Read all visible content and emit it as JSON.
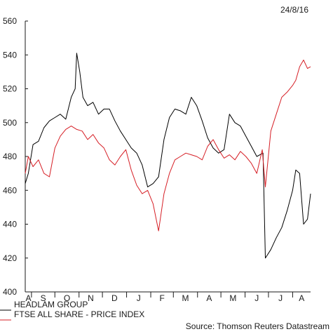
{
  "date_label": "24/8/16",
  "source": "Source: Thomson Reuters Datastream",
  "chart_data": {
    "type": "line",
    "title": "",
    "xlabel": "",
    "ylabel": "",
    "ylim": [
      400,
      560
    ],
    "yticks": [
      400,
      420,
      440,
      460,
      480,
      500,
      520,
      540,
      560
    ],
    "x_month_labels": [
      "A",
      "S",
      "O",
      "N",
      "D",
      "J",
      "F",
      "M",
      "A",
      "M",
      "J",
      "J",
      "A"
    ],
    "x_months": [
      "2015-08",
      "2015-09",
      "2015-10",
      "2015-11",
      "2015-12",
      "2016-01",
      "2016-02",
      "2016-03",
      "2016-04",
      "2016-05",
      "2016-06",
      "2016-07",
      "2016-08"
    ],
    "x_range": [
      "2015-08-24",
      "2016-08-24"
    ],
    "legend_position": "bottom-left",
    "grid": false,
    "series": [
      {
        "name": "HEADLAM GROUP",
        "color": "#000000",
        "points": [
          [
            "2015-08-24",
            464
          ],
          [
            "2015-08-28",
            470
          ],
          [
            "2015-09-03",
            487
          ],
          [
            "2015-09-10",
            489
          ],
          [
            "2015-09-17",
            497
          ],
          [
            "2015-09-24",
            501
          ],
          [
            "2015-10-01",
            503
          ],
          [
            "2015-10-08",
            505
          ],
          [
            "2015-10-15",
            502
          ],
          [
            "2015-10-22",
            515
          ],
          [
            "2015-10-27",
            520
          ],
          [
            "2015-10-29",
            541
          ],
          [
            "2015-11-02",
            530
          ],
          [
            "2015-11-06",
            515
          ],
          [
            "2015-11-12",
            510
          ],
          [
            "2015-11-19",
            512
          ],
          [
            "2015-11-26",
            505
          ],
          [
            "2015-12-03",
            508
          ],
          [
            "2015-12-10",
            508
          ],
          [
            "2015-12-17",
            501
          ],
          [
            "2015-12-24",
            495
          ],
          [
            "2015-12-31",
            490
          ],
          [
            "2016-01-07",
            485
          ],
          [
            "2016-01-14",
            482
          ],
          [
            "2016-01-21",
            475
          ],
          [
            "2016-01-28",
            462
          ],
          [
            "2016-02-04",
            464
          ],
          [
            "2016-02-11",
            468
          ],
          [
            "2016-02-18",
            490
          ],
          [
            "2016-02-25",
            503
          ],
          [
            "2016-03-03",
            508
          ],
          [
            "2016-03-10",
            507
          ],
          [
            "2016-03-17",
            505
          ],
          [
            "2016-03-24",
            515
          ],
          [
            "2016-03-31",
            510
          ],
          [
            "2016-04-07",
            501
          ],
          [
            "2016-04-14",
            491
          ],
          [
            "2016-04-21",
            485
          ],
          [
            "2016-04-28",
            482
          ],
          [
            "2016-05-05",
            484
          ],
          [
            "2016-05-12",
            505
          ],
          [
            "2016-05-19",
            500
          ],
          [
            "2016-05-26",
            498
          ],
          [
            "2016-06-02",
            492
          ],
          [
            "2016-06-09",
            486
          ],
          [
            "2016-06-16",
            480
          ],
          [
            "2016-06-24",
            482
          ],
          [
            "2016-06-27",
            420
          ],
          [
            "2016-07-04",
            425
          ],
          [
            "2016-07-11",
            432
          ],
          [
            "2016-07-18",
            438
          ],
          [
            "2016-07-25",
            448
          ],
          [
            "2016-08-01",
            460
          ],
          [
            "2016-08-05",
            472
          ],
          [
            "2016-08-10",
            470
          ],
          [
            "2016-08-15",
            440
          ],
          [
            "2016-08-20",
            443
          ],
          [
            "2016-08-24",
            458
          ]
        ]
      },
      {
        "name": "FTSE ALL SHARE - PRICE INDEX",
        "color": "#d61f26",
        "points": [
          [
            "2015-08-24",
            470
          ],
          [
            "2015-08-28",
            480
          ],
          [
            "2015-09-03",
            474
          ],
          [
            "2015-09-10",
            478
          ],
          [
            "2015-09-17",
            470
          ],
          [
            "2015-09-24",
            468
          ],
          [
            "2015-10-01",
            485
          ],
          [
            "2015-10-08",
            492
          ],
          [
            "2015-10-15",
            496
          ],
          [
            "2015-10-22",
            498
          ],
          [
            "2015-10-29",
            496
          ],
          [
            "2015-11-05",
            495
          ],
          [
            "2015-11-12",
            490
          ],
          [
            "2015-11-19",
            493
          ],
          [
            "2015-11-26",
            488
          ],
          [
            "2015-12-03",
            485
          ],
          [
            "2015-12-10",
            478
          ],
          [
            "2015-12-17",
            475
          ],
          [
            "2015-12-24",
            480
          ],
          [
            "2015-12-31",
            484
          ],
          [
            "2016-01-07",
            472
          ],
          [
            "2016-01-14",
            463
          ],
          [
            "2016-01-21",
            458
          ],
          [
            "2016-01-28",
            460
          ],
          [
            "2016-02-04",
            452
          ],
          [
            "2016-02-11",
            436
          ],
          [
            "2016-02-18",
            458
          ],
          [
            "2016-02-25",
            470
          ],
          [
            "2016-03-03",
            478
          ],
          [
            "2016-03-10",
            480
          ],
          [
            "2016-03-17",
            482
          ],
          [
            "2016-03-24",
            481
          ],
          [
            "2016-03-31",
            480
          ],
          [
            "2016-04-07",
            478
          ],
          [
            "2016-04-14",
            486
          ],
          [
            "2016-04-21",
            490
          ],
          [
            "2016-04-28",
            484
          ],
          [
            "2016-05-05",
            479
          ],
          [
            "2016-05-12",
            481
          ],
          [
            "2016-05-19",
            478
          ],
          [
            "2016-05-26",
            483
          ],
          [
            "2016-06-02",
            480
          ],
          [
            "2016-06-09",
            476
          ],
          [
            "2016-06-16",
            470
          ],
          [
            "2016-06-23",
            484
          ],
          [
            "2016-06-27",
            462
          ],
          [
            "2016-07-04",
            495
          ],
          [
            "2016-07-11",
            505
          ],
          [
            "2016-07-18",
            515
          ],
          [
            "2016-07-25",
            518
          ],
          [
            "2016-08-01",
            522
          ],
          [
            "2016-08-05",
            525
          ],
          [
            "2016-08-10",
            533
          ],
          [
            "2016-08-15",
            537
          ],
          [
            "2016-08-20",
            532
          ],
          [
            "2016-08-24",
            533
          ]
        ]
      }
    ]
  }
}
